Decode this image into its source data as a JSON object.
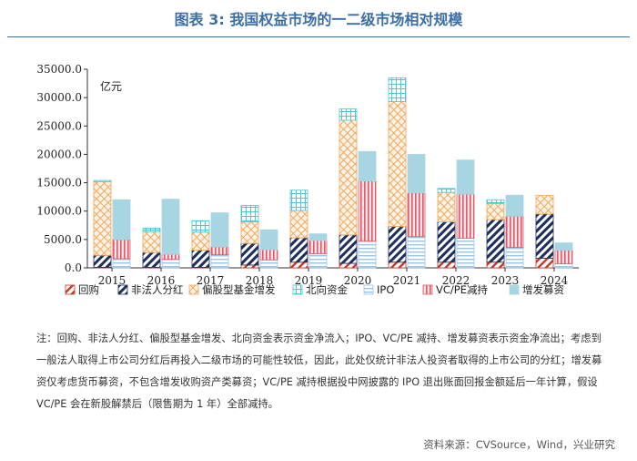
{
  "title": "图表  3: 我国权益市场的一二级市场相对规模",
  "note": "注：回购、非法人分红、偏股型基金增发、北向资金表示资金净流入；IPO、VC/PE 减持、增发募资表示资金净流出；考虑到一般法人取得上市公司分红后再投入二级市场的可能性较低，因此，此处仅统计非法人投资者取得的上市公司的分红；增发募资仅考虑货币募资，不包含增发收购资产类募资；VC/PE 减持根据投中网披露的 IPO 退出账面回报金额延后一年计算，假设 VC/PE 会在新股解禁后（限售期为 1 年）全部减持。",
  "source": "资料来源：CVSource，Wind，兴业研究",
  "colors": {
    "title": "#3b6ea5",
    "buyback": "#c0392b",
    "dividend": "#1f2f5c",
    "fund": "#f2a65a",
    "northbound": "#4fc7d3",
    "ipo": "#9ec4e4",
    "vcpe": "#e05a6a",
    "sep": "#a8d5e2"
  },
  "chart_data": {
    "type": "bar",
    "stacked": true,
    "unit_label": "亿元",
    "ylim": [
      0,
      35000
    ],
    "yticks": [
      "0.0",
      "5000.0",
      "10000.0",
      "15000.0",
      "20000.0",
      "25000.0",
      "30000.0",
      "35000.0"
    ],
    "ytick_values": [
      0,
      5000,
      10000,
      15000,
      20000,
      25000,
      30000,
      35000
    ],
    "categories": [
      "2015",
      "2016",
      "2017",
      "2018",
      "2019",
      "2020",
      "2021",
      "2022",
      "2023",
      "2024"
    ],
    "inflow_series": [
      {
        "key": "buyback",
        "name": "回购",
        "pattern": "diag-red",
        "values": [
          100,
          100,
          100,
          500,
          1000,
          800,
          1000,
          1000,
          1000,
          1700
        ]
      },
      {
        "key": "dividend",
        "name": "非法人分红",
        "pattern": "diag-navy",
        "values": [
          2100,
          2600,
          3000,
          3800,
          4300,
          5000,
          6300,
          7100,
          7500,
          7800
        ]
      },
      {
        "key": "fund",
        "name": "偏股型基金增发",
        "pattern": "grid-orange",
        "values": [
          13000,
          3700,
          3200,
          3800,
          4800,
          20200,
          22000,
          5200,
          2800,
          3300
        ]
      },
      {
        "key": "northbound",
        "name": "北向资金",
        "pattern": "grid-teal",
        "values": [
          200,
          600,
          2000,
          2900,
          3600,
          2000,
          4200,
          700,
          700,
          0
        ]
      }
    ],
    "outflow_series": [
      {
        "key": "ipo",
        "name": "IPO",
        "pattern": "hline-blue",
        "values": [
          1600,
          1500,
          2300,
          1400,
          2500,
          4700,
          5500,
          5200,
          3600,
          700
        ]
      },
      {
        "key": "vcpe",
        "name": "VC/PE减持",
        "pattern": "vline-red",
        "values": [
          3400,
          900,
          1400,
          1800,
          2300,
          10600,
          7700,
          7800,
          5500,
          2400
        ]
      },
      {
        "key": "sep",
        "name": "增发募资",
        "pattern": "solid-lightblue",
        "values": [
          7000,
          9700,
          6000,
          3500,
          1200,
          5200,
          6800,
          6000,
          3700,
          1300
        ]
      }
    ],
    "legend": [
      "回购",
      "非法人分红",
      "偏股型基金增发",
      "北向资金",
      "IPO",
      "VC/PE减持",
      "增发募资"
    ],
    "legend_position": "bottom",
    "grid": false
  }
}
